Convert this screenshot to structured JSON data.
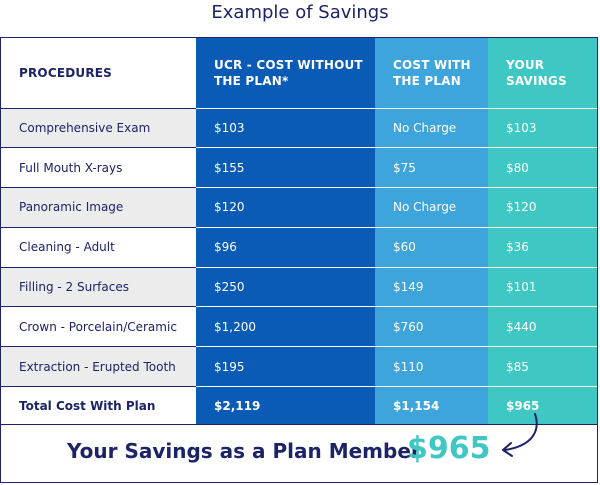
{
  "title": "Example of Savings",
  "headers": {
    "procedures": "PROCEDURES",
    "ucr": "UCR - COST WITHOUT THE PLAN*",
    "cost": "COST WITH THE PLAN",
    "savings": "YOUR SAVINGS"
  },
  "rows": [
    {
      "procedure": "Comprehensive Exam",
      "ucr": "$103",
      "cost": "No Charge",
      "savings": "$103"
    },
    {
      "procedure": "Full Mouth X-rays",
      "ucr": "$155",
      "cost": "$75",
      "savings": "$80"
    },
    {
      "procedure": "Panoramic Image",
      "ucr": "$120",
      "cost": "No Charge",
      "savings": "$120"
    },
    {
      "procedure": "Cleaning - Adult",
      "ucr": "$96",
      "cost": "$60",
      "savings": "$36"
    },
    {
      "procedure": "Filling - 2 Surfaces",
      "ucr": "$250",
      "cost": "$149",
      "savings": "$101"
    },
    {
      "procedure": "Crown - Porcelain/Ceramic",
      "ucr": "$1,200",
      "cost": "$760",
      "savings": "$440"
    },
    {
      "procedure": "Extraction - Erupted Tooth",
      "ucr": "$195",
      "cost": "$110",
      "savings": "$85"
    }
  ],
  "total": {
    "procedure": "Total Cost With Plan",
    "ucr": "$2,119",
    "cost": "$1,154",
    "savings": "$965"
  },
  "footer": {
    "label": "Your Savings as a Plan Member",
    "amount": "$965"
  },
  "colors": {
    "navy": "#1c2366",
    "ucr": "#0a5bb5",
    "cost": "#3ea5dc",
    "savings": "#3fc7c4",
    "row_alt": "#ececec"
  },
  "icons": {
    "footer_arrow": "curved-arrow-icon"
  }
}
